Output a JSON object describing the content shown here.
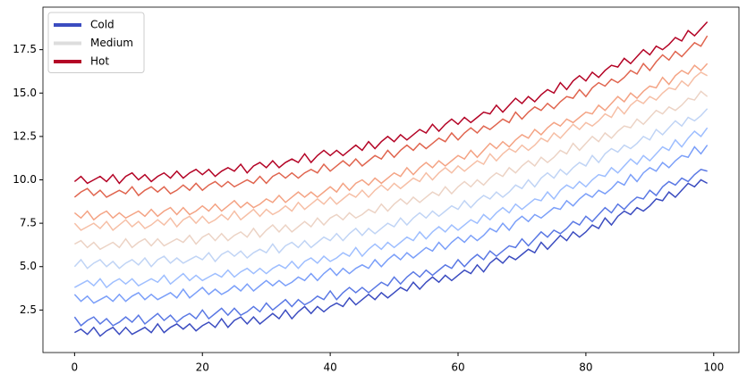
{
  "chart_data": {
    "type": "line",
    "x": [
      0,
      1,
      2,
      3,
      4,
      5,
      6,
      7,
      8,
      9,
      10,
      11,
      12,
      13,
      14,
      15,
      16,
      17,
      18,
      19,
      20,
      21,
      22,
      23,
      24,
      25,
      26,
      27,
      28,
      29,
      30,
      31,
      32,
      33,
      34,
      35,
      36,
      37,
      38,
      39,
      40,
      41,
      42,
      43,
      44,
      45,
      46,
      47,
      48,
      49,
      50,
      51,
      52,
      53,
      54,
      55,
      56,
      57,
      58,
      59,
      60,
      61,
      62,
      63,
      64,
      65,
      66,
      67,
      68,
      69,
      70,
      71,
      72,
      73,
      74,
      75,
      76,
      77,
      78,
      79,
      80,
      81,
      82,
      83,
      84,
      85,
      86,
      87,
      88,
      89,
      90,
      91,
      92,
      93,
      94,
      95,
      96,
      97,
      98,
      99
    ],
    "series": [
      {
        "color": "#3b4cc0",
        "values": [
          1.2,
          1.4,
          1.1,
          1.5,
          1.0,
          1.3,
          1.5,
          1.1,
          1.5,
          1.1,
          1.3,
          1.5,
          1.2,
          1.7,
          1.2,
          1.5,
          1.7,
          1.4,
          1.7,
          1.3,
          1.6,
          1.8,
          1.5,
          2.0,
          1.5,
          1.9,
          2.1,
          1.7,
          2.1,
          1.7,
          2.0,
          2.3,
          2.0,
          2.5,
          2.0,
          2.4,
          2.7,
          2.3,
          2.7,
          2.4,
          2.7,
          2.9,
          2.7,
          3.2,
          2.8,
          3.1,
          3.4,
          3.1,
          3.5,
          3.2,
          3.5,
          3.8,
          3.6,
          4.1,
          3.7,
          4.1,
          4.4,
          4.1,
          4.5,
          4.2,
          4.5,
          4.8,
          4.6,
          5.1,
          4.7,
          5.2,
          5.5,
          5.2,
          5.6,
          5.4,
          5.7,
          6.0,
          5.8,
          6.4,
          6.0,
          6.4,
          6.8,
          6.5,
          7.0,
          6.7,
          7.0,
          7.4,
          7.2,
          7.8,
          7.4,
          7.9,
          8.2,
          8.0,
          8.4,
          8.2,
          8.5,
          8.9,
          8.8,
          9.3,
          9.0,
          9.4,
          9.8,
          9.6,
          10.0,
          9.8
        ]
      },
      {
        "color": "#5a78e4",
        "values": [
          2.1,
          1.6,
          1.9,
          2.1,
          1.7,
          2.0,
          1.6,
          1.8,
          2.1,
          1.8,
          2.2,
          1.7,
          2.0,
          2.3,
          1.9,
          2.2,
          1.8,
          2.1,
          2.3,
          2.0,
          2.5,
          2.0,
          2.3,
          2.6,
          2.2,
          2.6,
          2.2,
          2.4,
          2.7,
          2.4,
          2.9,
          2.5,
          2.8,
          3.1,
          2.7,
          3.1,
          2.8,
          3.0,
          3.3,
          3.1,
          3.6,
          3.1,
          3.5,
          3.8,
          3.5,
          3.8,
          3.5,
          3.8,
          4.1,
          3.9,
          4.4,
          4.0,
          4.4,
          4.7,
          4.4,
          4.8,
          4.5,
          4.8,
          5.1,
          4.9,
          5.4,
          5.0,
          5.4,
          5.7,
          5.4,
          5.9,
          5.6,
          5.9,
          6.2,
          6.1,
          6.6,
          6.2,
          6.6,
          7.0,
          6.7,
          7.1,
          6.9,
          7.2,
          7.6,
          7.4,
          7.9,
          7.6,
          8.0,
          8.4,
          8.1,
          8.6,
          8.3,
          8.7,
          9.0,
          8.9,
          9.4,
          9.1,
          9.6,
          9.9,
          9.7,
          10.1,
          9.9,
          10.3,
          10.6,
          10.5
        ]
      },
      {
        "color": "#7b9ff9",
        "values": [
          3.4,
          3.0,
          3.3,
          2.9,
          3.1,
          3.3,
          3.0,
          3.4,
          3.0,
          3.3,
          3.5,
          3.1,
          3.4,
          3.1,
          3.3,
          3.5,
          3.2,
          3.7,
          3.2,
          3.5,
          3.8,
          3.4,
          3.7,
          3.4,
          3.6,
          3.9,
          3.6,
          4.0,
          3.6,
          3.9,
          4.2,
          3.9,
          4.2,
          3.9,
          4.1,
          4.4,
          4.2,
          4.6,
          4.2,
          4.6,
          4.9,
          4.5,
          4.9,
          4.6,
          4.9,
          5.1,
          4.9,
          5.4,
          5.0,
          5.4,
          5.7,
          5.4,
          5.8,
          5.5,
          5.8,
          6.1,
          5.9,
          6.4,
          6.0,
          6.4,
          6.7,
          6.4,
          6.8,
          6.5,
          6.8,
          7.2,
          7.0,
          7.5,
          7.1,
          7.6,
          7.9,
          7.6,
          8.0,
          7.8,
          8.1,
          8.4,
          8.3,
          8.8,
          8.5,
          8.9,
          9.2,
          9.0,
          9.4,
          9.2,
          9.5,
          9.9,
          9.7,
          10.3,
          9.9,
          10.4,
          10.7,
          10.5,
          11.0,
          10.7,
          11.1,
          11.4,
          11.3,
          11.9,
          11.5,
          12.0
        ]
      },
      {
        "color": "#9ebeff",
        "values": [
          3.8,
          4.0,
          4.2,
          3.9,
          4.3,
          3.8,
          4.1,
          4.3,
          4.0,
          4.3,
          3.9,
          4.1,
          4.3,
          4.1,
          4.5,
          4.0,
          4.3,
          4.6,
          4.2,
          4.5,
          4.2,
          4.4,
          4.6,
          4.4,
          4.8,
          4.4,
          4.7,
          4.9,
          4.6,
          4.9,
          4.6,
          4.9,
          5.1,
          4.9,
          5.3,
          4.9,
          5.3,
          5.5,
          5.2,
          5.6,
          5.3,
          5.5,
          5.8,
          5.6,
          6.1,
          5.6,
          6.0,
          6.3,
          6.0,
          6.4,
          6.1,
          6.4,
          6.7,
          6.5,
          7.0,
          6.6,
          7.0,
          7.3,
          7.0,
          7.4,
          7.1,
          7.4,
          7.7,
          7.5,
          8.0,
          7.7,
          8.1,
          8.4,
          8.1,
          8.6,
          8.3,
          8.6,
          8.9,
          8.8,
          9.3,
          8.9,
          9.4,
          9.7,
          9.5,
          9.9,
          9.6,
          10.0,
          10.3,
          10.2,
          10.7,
          10.4,
          10.8,
          11.2,
          10.9,
          11.4,
          11.1,
          11.5,
          11.9,
          11.7,
          12.3,
          11.9,
          12.4,
          12.8,
          12.5,
          13.0
        ]
      },
      {
        "color": "#c0d4f5",
        "values": [
          5.0,
          5.4,
          4.9,
          5.2,
          5.4,
          5.0,
          5.3,
          4.9,
          5.2,
          5.4,
          5.1,
          5.5,
          5.0,
          5.4,
          5.6,
          5.2,
          5.5,
          5.2,
          5.4,
          5.6,
          5.4,
          5.8,
          5.3,
          5.7,
          5.9,
          5.6,
          5.9,
          5.5,
          5.8,
          6.0,
          5.8,
          6.3,
          5.8,
          6.2,
          6.4,
          6.1,
          6.5,
          6.1,
          6.4,
          6.7,
          6.5,
          6.9,
          6.5,
          6.9,
          7.2,
          6.8,
          7.2,
          6.9,
          7.2,
          7.5,
          7.3,
          7.8,
          7.4,
          7.8,
          8.1,
          7.8,
          8.2,
          7.9,
          8.2,
          8.5,
          8.3,
          8.8,
          8.4,
          8.8,
          9.1,
          8.9,
          9.3,
          9.0,
          9.3,
          9.7,
          9.5,
          10.0,
          9.6,
          10.1,
          10.4,
          10.1,
          10.6,
          10.3,
          10.7,
          11.0,
          10.8,
          11.4,
          11.0,
          11.5,
          11.8,
          11.6,
          12.0,
          11.8,
          12.1,
          12.5,
          12.3,
          12.9,
          12.6,
          13.0,
          13.4,
          13.1,
          13.6,
          13.4,
          13.7,
          14.1
        ]
      },
      {
        "color": "#ecd3c5",
        "values": [
          6.3,
          6.5,
          6.1,
          6.4,
          6.0,
          6.2,
          6.4,
          6.1,
          6.6,
          6.1,
          6.4,
          6.6,
          6.2,
          6.6,
          6.2,
          6.4,
          6.6,
          6.4,
          6.8,
          6.3,
          6.7,
          6.9,
          6.5,
          6.9,
          6.5,
          6.8,
          7.0,
          6.7,
          7.2,
          6.7,
          7.1,
          7.4,
          7.0,
          7.4,
          7.0,
          7.3,
          7.6,
          7.3,
          7.8,
          7.4,
          7.8,
          8.0,
          7.7,
          8.1,
          7.8,
          8.0,
          8.3,
          8.1,
          8.6,
          8.2,
          8.6,
          8.9,
          8.6,
          9.0,
          8.7,
          9.0,
          9.3,
          9.1,
          9.6,
          9.2,
          9.6,
          9.9,
          9.6,
          10.0,
          9.7,
          10.1,
          10.4,
          10.2,
          10.7,
          10.4,
          10.8,
          11.1,
          10.8,
          11.3,
          11.0,
          11.3,
          11.7,
          11.5,
          12.1,
          11.7,
          12.1,
          12.5,
          12.2,
          12.7,
          12.4,
          12.8,
          13.1,
          13.0,
          13.5,
          13.2,
          13.6,
          14.0,
          13.8,
          14.2,
          14.0,
          14.3,
          14.7,
          14.6,
          15.1,
          14.8
        ]
      },
      {
        "color": "#f6bfa6",
        "values": [
          7.5,
          7.1,
          7.3,
          7.5,
          7.2,
          7.6,
          7.1,
          7.4,
          7.7,
          7.3,
          7.6,
          7.2,
          7.4,
          7.7,
          7.4,
          7.8,
          7.3,
          7.7,
          7.9,
          7.5,
          7.9,
          7.5,
          7.7,
          8.0,
          7.7,
          8.2,
          7.7,
          8.0,
          8.3,
          7.9,
          8.3,
          8.0,
          8.2,
          8.5,
          8.2,
          8.7,
          8.3,
          8.6,
          8.9,
          8.6,
          9.0,
          8.6,
          8.9,
          9.2,
          9.0,
          9.4,
          9.0,
          9.4,
          9.7,
          9.4,
          9.8,
          9.5,
          9.8,
          10.1,
          9.9,
          10.4,
          10.0,
          10.4,
          10.7,
          10.4,
          10.8,
          10.5,
          10.8,
          11.1,
          10.9,
          11.5,
          11.1,
          11.5,
          11.8,
          11.6,
          12.0,
          11.7,
          12.0,
          12.4,
          12.2,
          12.7,
          12.4,
          12.8,
          13.2,
          12.9,
          13.3,
          13.1,
          13.4,
          13.8,
          13.6,
          14.2,
          13.8,
          14.3,
          14.6,
          14.4,
          14.8,
          14.6,
          15.0,
          15.3,
          15.2,
          15.7,
          15.4,
          15.9,
          16.2,
          16.0
        ]
      },
      {
        "color": "#f4a384",
        "values": [
          8.1,
          7.8,
          8.2,
          7.7,
          8.0,
          8.2,
          7.8,
          8.1,
          7.8,
          8.0,
          8.2,
          7.9,
          8.3,
          7.9,
          8.2,
          8.4,
          8.0,
          8.4,
          8.0,
          8.2,
          8.5,
          8.2,
          8.6,
          8.2,
          8.5,
          8.8,
          8.4,
          8.7,
          8.4,
          8.6,
          8.9,
          8.7,
          9.1,
          8.7,
          9.0,
          9.3,
          9.0,
          9.3,
          9.0,
          9.3,
          9.6,
          9.3,
          9.8,
          9.4,
          9.8,
          10.0,
          9.7,
          10.1,
          9.8,
          10.1,
          10.4,
          10.2,
          10.7,
          10.3,
          10.7,
          11.0,
          10.7,
          11.1,
          10.8,
          11.1,
          11.4,
          11.2,
          11.7,
          11.3,
          11.7,
          12.1,
          11.8,
          12.2,
          11.9,
          12.3,
          12.6,
          12.4,
          12.9,
          12.6,
          13.0,
          13.3,
          13.1,
          13.5,
          13.3,
          13.6,
          13.9,
          13.8,
          14.3,
          14.0,
          14.4,
          14.8,
          14.5,
          15.0,
          14.7,
          15.1,
          15.4,
          15.3,
          15.9,
          15.5,
          16.0,
          16.3,
          16.1,
          16.6,
          16.3,
          16.7
        ]
      },
      {
        "color": "#e0654f",
        "values": [
          9.0,
          9.3,
          9.5,
          9.1,
          9.4,
          9.0,
          9.2,
          9.4,
          9.2,
          9.6,
          9.1,
          9.4,
          9.6,
          9.3,
          9.6,
          9.2,
          9.4,
          9.7,
          9.4,
          9.8,
          9.4,
          9.7,
          9.9,
          9.6,
          9.9,
          9.6,
          9.8,
          10.0,
          9.8,
          10.2,
          9.8,
          10.2,
          10.4,
          10.1,
          10.4,
          10.1,
          10.4,
          10.6,
          10.4,
          10.9,
          10.5,
          10.8,
          11.1,
          10.8,
          11.2,
          10.8,
          11.1,
          11.4,
          11.2,
          11.7,
          11.3,
          11.7,
          12.0,
          11.7,
          12.1,
          11.8,
          12.1,
          12.4,
          12.2,
          12.7,
          12.3,
          12.7,
          13.0,
          12.7,
          13.1,
          12.9,
          13.2,
          13.5,
          13.3,
          13.9,
          13.5,
          13.9,
          14.2,
          14.0,
          14.4,
          14.1,
          14.5,
          14.8,
          14.7,
          15.2,
          14.8,
          15.3,
          15.6,
          15.4,
          15.8,
          15.6,
          15.9,
          16.3,
          16.1,
          16.7,
          16.3,
          16.8,
          17.2,
          16.9,
          17.4,
          17.1,
          17.5,
          17.9,
          17.7,
          18.3
        ]
      },
      {
        "color": "#b40426",
        "values": [
          9.9,
          10.2,
          9.8,
          10.0,
          10.2,
          9.9,
          10.3,
          9.8,
          10.2,
          10.4,
          10.0,
          10.3,
          9.9,
          10.2,
          10.4,
          10.1,
          10.5,
          10.1,
          10.4,
          10.6,
          10.3,
          10.6,
          10.2,
          10.5,
          10.7,
          10.5,
          10.9,
          10.4,
          10.8,
          11.0,
          10.7,
          11.1,
          10.7,
          11.0,
          11.2,
          11.0,
          11.5,
          11.0,
          11.4,
          11.7,
          11.4,
          11.7,
          11.4,
          11.7,
          12.0,
          11.7,
          12.2,
          11.8,
          12.2,
          12.5,
          12.2,
          12.6,
          12.3,
          12.6,
          12.9,
          12.7,
          13.2,
          12.8,
          13.2,
          13.5,
          13.2,
          13.6,
          13.3,
          13.6,
          13.9,
          13.8,
          14.3,
          13.9,
          14.3,
          14.7,
          14.4,
          14.8,
          14.5,
          14.9,
          15.2,
          15.0,
          15.6,
          15.2,
          15.7,
          16.0,
          15.7,
          16.2,
          15.9,
          16.3,
          16.6,
          16.5,
          17.0,
          16.7,
          17.1,
          17.5,
          17.2,
          17.7,
          17.5,
          17.8,
          18.2,
          18.0,
          18.6,
          18.3,
          18.7,
          19.1
        ]
      }
    ],
    "legend": [
      {
        "name": "Cold",
        "color": "#3b4cc0"
      },
      {
        "name": "Medium",
        "color": "#dddddd"
      },
      {
        "name": "Hot",
        "color": "#b40426"
      }
    ],
    "legend_loc": "upper left",
    "xlim": [
      -4.95,
      103.95
    ],
    "xticks": [
      0,
      20,
      40,
      60,
      80,
      100
    ],
    "ylim": [
      0.05,
      19.95
    ],
    "yticks": [
      2.5,
      {
        "value": 5,
        "label": "5.0"
      },
      7.5,
      {
        "value": 10,
        "label": "10.0"
      },
      12.5,
      {
        "value": 15,
        "label": "15.0"
      },
      17.5
    ]
  }
}
